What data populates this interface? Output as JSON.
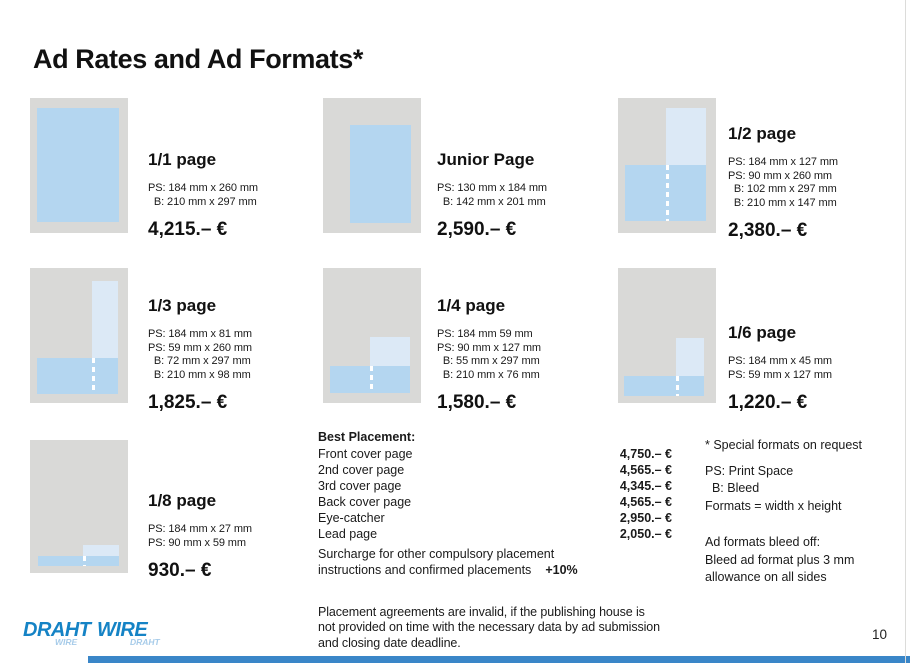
{
  "title": "Ad Rates and Ad Formats*",
  "page_number": "10",
  "formats": [
    {
      "name": "1/1 page",
      "specs": [
        "PS: 184 mm x 260 mm",
        "  B: 210 mm x 297 mm"
      ],
      "price": "4,215.– €"
    },
    {
      "name": "Junior Page",
      "specs": [
        "PS: 130 mm x 184 mm",
        "  B: 142 mm x 201 mm"
      ],
      "price": "2,590.– €"
    },
    {
      "name": "1/2 page",
      "specs": [
        "PS: 184 mm x 127 mm",
        "PS: 90 mm x 260 mm",
        "  B: 102 mm x 297 mm",
        "  B: 210 mm x 147 mm"
      ],
      "price": "2,380.– €"
    },
    {
      "name": "1/3 page",
      "specs": [
        "PS: 184 mm x 81 mm",
        "PS: 59 mm x 260 mm",
        "  B: 72 mm x 297 mm",
        "  B: 210 mm x 98 mm"
      ],
      "price": "1,825.– €"
    },
    {
      "name": "1/4 page",
      "specs": [
        "PS: 184 mm 59 mm",
        "PS: 90 mm x 127 mm",
        "  B: 55 mm x 297 mm",
        "  B: 210 mm x 76 mm"
      ],
      "price": "1,580.– €"
    },
    {
      "name": "1/6 page",
      "specs": [
        "PS: 184 mm x 45 mm",
        "PS: 59 mm x 127 mm"
      ],
      "price": "1,220.– €"
    },
    {
      "name": "1/8 page",
      "specs": [
        "PS: 184 mm x 27 mm",
        "PS: 90 mm x 59 mm"
      ],
      "price": "930.– €"
    }
  ],
  "best_placement": {
    "heading": "Best Placement:",
    "items": [
      {
        "label": "Front cover page",
        "price": "4,750.– €"
      },
      {
        "label": "2nd cover page",
        "price": "4,565.– €"
      },
      {
        "label": "3rd cover page",
        "price": "4,345.– €"
      },
      {
        "label": "Back cover page",
        "price": "4,565.– €"
      },
      {
        "label": "Eye-catcher",
        "price": "2,950.– €"
      },
      {
        "label": "Lead page",
        "price": "2,050.– €"
      }
    ],
    "surcharge_line1": "Surcharge for other compulsory placement",
    "surcharge_line2": "instructions and confirmed placements",
    "surcharge_value": "+10%",
    "disclaimer": "Placement agreements are invalid, if the publishing house is not provided on time with the necessary data by ad submission and closing date deadline."
  },
  "notes": {
    "special_formats": "* Special formats on request",
    "ps_legend": "PS: Print Space",
    "b_legend": "  B: Bleed",
    "formats_legend": "Formats = width x height",
    "bleed_heading": "Ad formats bleed off:",
    "bleed_line2": "Bleed ad format plus 3 mm",
    "bleed_line3": "allowance on all sides"
  },
  "logo": {
    "word1": "DRAHT",
    "word1_sub": "WIRE",
    "word2": "WIRE",
    "word2_sub": "DRAHT"
  },
  "colors": {
    "thumb_bg": "#d9d9d7",
    "ad_light_blue": "#dce9f6",
    "ad_medium_blue": "#b4d6f0",
    "logo_blue": "#1583c5",
    "logo_sub_blue": "#a6cbe9",
    "footer_bar_blue": "#3a86c8"
  }
}
